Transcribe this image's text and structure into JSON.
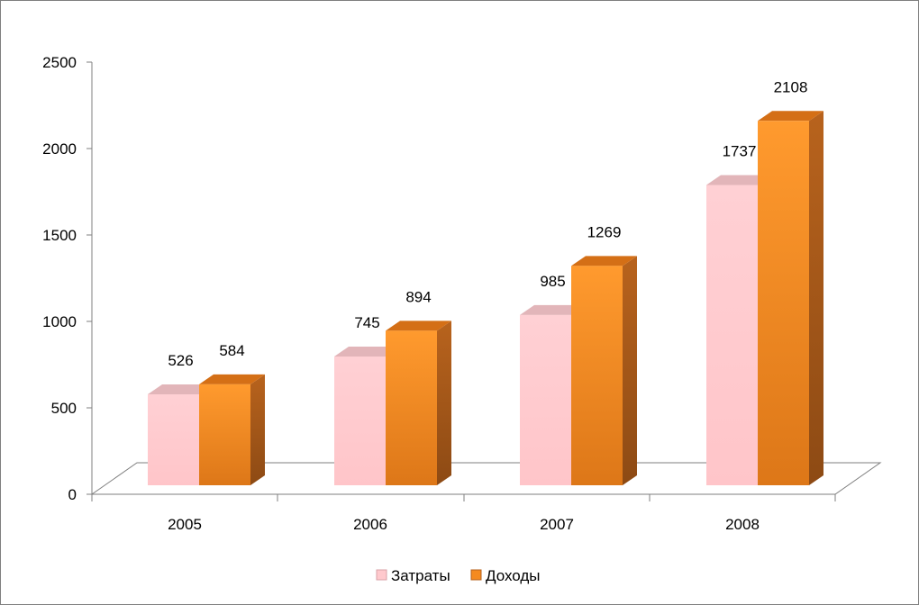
{
  "chart_data": {
    "type": "bar",
    "categories": [
      "2005",
      "2006",
      "2007",
      "2008"
    ],
    "series": [
      {
        "name": "Затраты",
        "values": [
          526,
          745,
          985,
          1737
        ],
        "color": "#ffc9cd"
      },
      {
        "name": "Доходы",
        "values": [
          584,
          894,
          1269,
          2108
        ],
        "color": "#f58a1f"
      }
    ],
    "ylim": [
      0,
      2500
    ],
    "yticks": [
      "0",
      "500",
      "1000",
      "1500",
      "2000",
      "2500"
    ],
    "grid": false,
    "legend_position": "bottom",
    "data_labels": [
      [
        "526",
        "745",
        "985",
        "1737"
      ],
      [
        "584",
        "894",
        "1269",
        "2108"
      ]
    ]
  },
  "colors": {
    "axis": "#7f7f7f",
    "floor": "#ffffff",
    "series_1_front": "#ffc9cd",
    "series_1_side": "#e8aeb4",
    "series_1_top": "#e0b3b7",
    "series_2_front": "#f58a1f",
    "series_2_side": "#b4601c",
    "series_2_top": "#cf6f1a"
  }
}
